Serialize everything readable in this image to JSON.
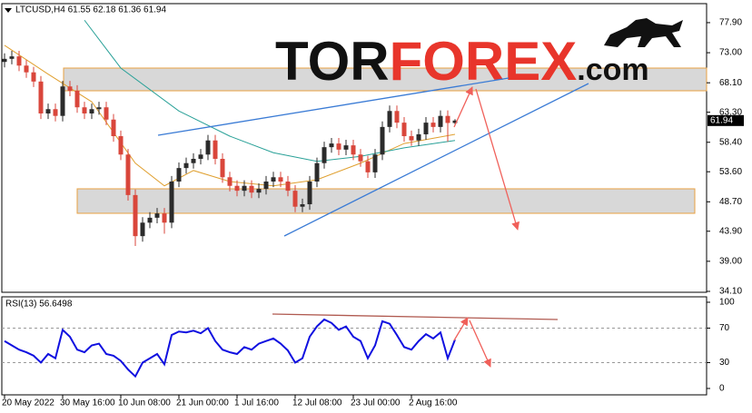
{
  "watermark": [
    "TOR",
    "FOREX",
    ".com"
  ],
  "chart_data": [
    {
      "type": "candlestick",
      "title": "LTCUSD,H4  61.55 62.18 61.36 61.94",
      "categories": [
        "20 May 2022",
        null,
        null,
        null,
        null,
        null,
        null,
        null,
        "30 May 16:00",
        null,
        null,
        null,
        null,
        null,
        null,
        null,
        "10 Jun 08:00",
        null,
        null,
        null,
        null,
        null,
        null,
        null,
        "21 Jun 00:00",
        null,
        null,
        null,
        null,
        null,
        null,
        null,
        "1 Jul 16:00",
        null,
        null,
        null,
        null,
        null,
        null,
        null,
        "12 Jul 08:00",
        null,
        null,
        null,
        null,
        null,
        null,
        null,
        "23 Jul 00:00",
        null,
        null,
        null,
        null,
        null,
        null,
        null,
        "2 Aug 16:00",
        null,
        null,
        null,
        null,
        null,
        null
      ],
      "open": [
        71.5,
        72.0,
        72.4,
        70.9,
        69.8,
        68.3,
        63.1,
        63.8,
        62.7,
        67.5,
        66.8,
        64.1,
        63.1,
        63.8,
        64.1,
        62.1,
        59.4,
        56.4,
        49.8,
        43.1,
        45.3,
        46.1,
        46.8,
        45.3,
        52.0,
        54.2,
        55.0,
        55.7,
        56.4,
        58.7,
        55.7,
        52.7,
        51.3,
        50.5,
        51.3,
        50.2,
        50.8,
        52.0,
        52.7,
        52.0,
        50.5,
        47.9,
        48.3,
        52.0,
        55.0,
        57.6,
        58.2,
        57.2,
        57.9,
        56.4,
        55.3,
        53.5,
        56.4,
        60.9,
        63.5,
        61.6,
        59.4,
        58.7,
        59.7,
        61.6,
        60.9,
        62.7,
        61.55
      ],
      "high": [
        72.9,
        73.3,
        73.3,
        71.8,
        70.7,
        69.2,
        64.7,
        64.7,
        68.4,
        68.4,
        67.7,
        65.0,
        64.7,
        65.0,
        65.0,
        63.0,
        60.3,
        57.3,
        50.7,
        46.2,
        47.0,
        47.7,
        47.7,
        52.9,
        55.1,
        55.9,
        56.6,
        57.3,
        59.6,
        59.6,
        56.6,
        53.6,
        52.2,
        52.2,
        52.2,
        51.7,
        52.9,
        53.6,
        53.6,
        52.9,
        51.4,
        49.2,
        52.9,
        55.9,
        58.5,
        59.1,
        59.1,
        58.8,
        58.8,
        57.3,
        56.2,
        57.3,
        61.8,
        64.4,
        64.4,
        62.5,
        60.3,
        60.6,
        62.5,
        62.5,
        63.6,
        63.6,
        62.18
      ],
      "low": [
        70.6,
        71.1,
        70.0,
        68.9,
        67.4,
        62.2,
        62.2,
        61.8,
        61.8,
        65.9,
        63.2,
        62.2,
        62.2,
        62.9,
        61.2,
        58.5,
        55.5,
        48.9,
        41.5,
        42.2,
        44.4,
        45.2,
        43.5,
        44.4,
        51.1,
        53.3,
        54.1,
        54.8,
        55.5,
        54.8,
        51.8,
        50.4,
        49.6,
        49.6,
        49.3,
        49.3,
        49.9,
        51.1,
        51.1,
        49.6,
        47.0,
        47.0,
        47.4,
        51.1,
        54.1,
        56.7,
        56.3,
        56.3,
        55.5,
        54.4,
        52.6,
        52.6,
        55.5,
        60.0,
        60.7,
        58.5,
        57.8,
        57.8,
        58.8,
        60.0,
        60.0,
        58.5,
        61.36
      ],
      "close": [
        72.0,
        72.4,
        70.9,
        69.8,
        68.3,
        63.1,
        63.8,
        62.7,
        67.5,
        66.8,
        64.1,
        63.1,
        63.8,
        64.1,
        62.1,
        59.4,
        56.4,
        49.8,
        43.1,
        45.3,
        46.1,
        46.8,
        45.3,
        52.0,
        54.2,
        55.0,
        55.7,
        56.4,
        58.7,
        55.7,
        52.7,
        51.3,
        50.5,
        51.3,
        50.2,
        50.8,
        52.0,
        52.7,
        52.0,
        50.5,
        47.9,
        48.3,
        52.0,
        55.0,
        57.6,
        58.2,
        57.2,
        57.9,
        56.4,
        55.3,
        53.5,
        56.4,
        60.9,
        63.5,
        61.6,
        59.4,
        58.7,
        59.7,
        61.6,
        60.9,
        62.7,
        61.55,
        61.94
      ],
      "up_color": "#2b2b2b",
      "down_color": "#d9463b",
      "overlays": [
        {
          "color": "#e0a030",
          "x": [
            0,
            6,
            12,
            18,
            22,
            26,
            31,
            37,
            43,
            49,
            55,
            62
          ],
          "values": [
            74.2,
            69.5,
            65.0,
            55.0,
            51.3,
            53.8,
            52.0,
            51.3,
            52.3,
            55.0,
            58.2,
            59.7
          ]
        },
        {
          "color": "#2aa198",
          "x": [
            11,
            16,
            24,
            31,
            37,
            43,
            49,
            55,
            62
          ],
          "values": [
            78.3,
            70.5,
            63.5,
            59.4,
            56.7,
            55.3,
            56.1,
            57.5,
            58.7
          ]
        }
      ],
      "ylim": [
        33.95,
        81.0
      ],
      "yticks": [
        {
          "value": 77.9,
          "label": "77.90"
        },
        {
          "value": 73.0,
          "label": "73.00"
        },
        {
          "value": 68.1,
          "label": "68.10"
        },
        {
          "value": 63.3,
          "label": "63.30"
        },
        {
          "value": 58.4,
          "label": "58.40"
        },
        {
          "value": 53.6,
          "label": "53.60"
        },
        {
          "value": 48.7,
          "label": "48.70"
        },
        {
          "value": 43.9,
          "label": "43.90"
        },
        {
          "value": 39.0,
          "label": "39.00"
        },
        {
          "value": 34.1,
          "label": "34.10"
        }
      ]
    },
    {
      "type": "line",
      "title": "RSI(13) 56.6498",
      "color": "#1010e0",
      "values": [
        55,
        50,
        45,
        42,
        38,
        30,
        40,
        35,
        68,
        60,
        45,
        42,
        50,
        52,
        40,
        38,
        32,
        22,
        14,
        30,
        35,
        40,
        28,
        62,
        66,
        65,
        67,
        64,
        70,
        55,
        45,
        42,
        40,
        48,
        45,
        52,
        55,
        58,
        52,
        44,
        30,
        35,
        60,
        72,
        80,
        76,
        68,
        72,
        60,
        55,
        35,
        50,
        78,
        75,
        62,
        48,
        45,
        55,
        63,
        58,
        65,
        35,
        56.6498
      ],
      "ylim": [
        -7.4,
        106.3
      ],
      "yticks": [
        100,
        70,
        30,
        0
      ],
      "levels": [
        70,
        30
      ]
    }
  ]
}
